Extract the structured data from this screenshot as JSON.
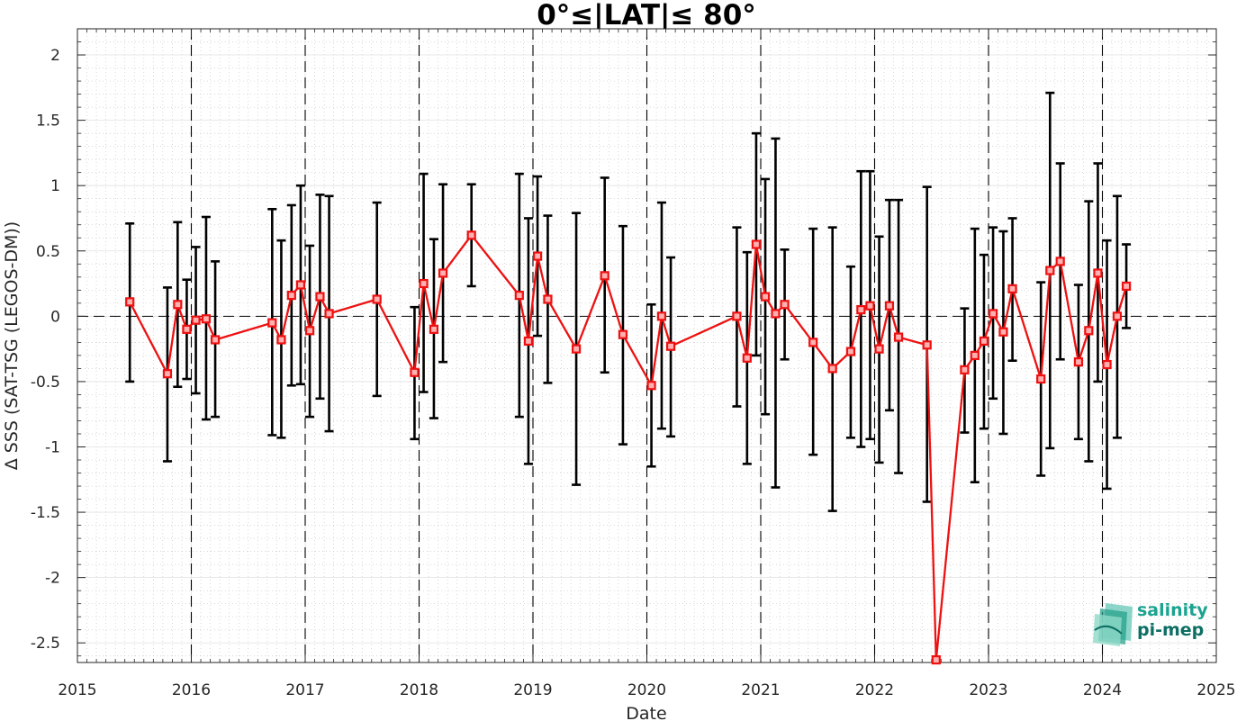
{
  "chart_data": {
    "type": "line",
    "title": "0°≤|LAT|≤ 80°",
    "xlabel": "Date",
    "ylabel": "Δ SSS (SAT-TSG (LEGOS-DM))",
    "xlim": [
      2015,
      2025
    ],
    "ylim": [
      -2.65,
      2.2
    ],
    "x_ticks": [
      "2015",
      "2016",
      "2017",
      "2018",
      "2019",
      "2020",
      "2021",
      "2022",
      "2023",
      "2024",
      "2025"
    ],
    "y_ticks": [
      "2",
      "1.5",
      "1",
      "0.5",
      "0",
      "-0.5",
      "-1",
      "-1.5",
      "-2",
      "-2.5"
    ],
    "year_dashed_lines": [
      2016,
      2017,
      2018,
      2019,
      2020,
      2021,
      2022,
      2023,
      2024
    ],
    "zero_line": 0,
    "grid": "minor dotted",
    "series": [
      {
        "color": "#ee1111",
        "marker": "square",
        "errorbar_color": "#000000",
        "points": [
          {
            "x": 2015.46,
            "y": 0.11,
            "lo": -0.5,
            "hi": 0.71
          },
          {
            "x": 2015.79,
            "y": -0.44,
            "lo": -1.11,
            "hi": 0.22
          },
          {
            "x": 2015.88,
            "y": 0.09,
            "lo": -0.54,
            "hi": 0.72
          },
          {
            "x": 2015.96,
            "y": -0.1,
            "lo": -0.48,
            "hi": 0.28
          },
          {
            "x": 2016.04,
            "y": -0.03,
            "lo": -0.59,
            "hi": 0.53
          },
          {
            "x": 2016.13,
            "y": -0.02,
            "lo": -0.79,
            "hi": 0.76
          },
          {
            "x": 2016.21,
            "y": -0.18,
            "lo": -0.77,
            "hi": 0.42
          },
          {
            "x": 2016.71,
            "y": -0.05,
            "lo": -0.91,
            "hi": 0.82
          },
          {
            "x": 2016.79,
            "y": -0.18,
            "lo": -0.93,
            "hi": 0.58
          },
          {
            "x": 2016.88,
            "y": 0.16,
            "lo": -0.53,
            "hi": 0.85
          },
          {
            "x": 2016.96,
            "y": 0.24,
            "lo": -0.52,
            "hi": 1.0
          },
          {
            "x": 2017.04,
            "y": -0.11,
            "lo": -0.77,
            "hi": 0.54
          },
          {
            "x": 2017.13,
            "y": 0.15,
            "lo": -0.63,
            "hi": 0.93
          },
          {
            "x": 2017.21,
            "y": 0.02,
            "lo": -0.88,
            "hi": 0.92
          },
          {
            "x": 2017.63,
            "y": 0.13,
            "lo": -0.61,
            "hi": 0.87
          },
          {
            "x": 2017.96,
            "y": -0.43,
            "lo": -0.94,
            "hi": 0.07
          },
          {
            "x": 2018.04,
            "y": 0.25,
            "lo": -0.58,
            "hi": 1.09
          },
          {
            "x": 2018.13,
            "y": -0.1,
            "lo": -0.78,
            "hi": 0.59
          },
          {
            "x": 2018.21,
            "y": 0.33,
            "lo": -0.35,
            "hi": 1.01
          },
          {
            "x": 2018.46,
            "y": 0.62,
            "lo": 0.23,
            "hi": 1.01
          },
          {
            "x": 2018.88,
            "y": 0.16,
            "lo": -0.77,
            "hi": 1.09
          },
          {
            "x": 2018.96,
            "y": -0.19,
            "lo": -1.13,
            "hi": 0.75
          },
          {
            "x": 2019.04,
            "y": 0.46,
            "lo": -0.15,
            "hi": 1.07
          },
          {
            "x": 2019.13,
            "y": 0.13,
            "lo": -0.51,
            "hi": 0.77
          },
          {
            "x": 2019.38,
            "y": -0.25,
            "lo": -1.29,
            "hi": 0.79
          },
          {
            "x": 2019.63,
            "y": 0.31,
            "lo": -0.43,
            "hi": 1.06
          },
          {
            "x": 2019.79,
            "y": -0.14,
            "lo": -0.98,
            "hi": 0.69
          },
          {
            "x": 2020.04,
            "y": -0.53,
            "lo": -1.15,
            "hi": 0.09
          },
          {
            "x": 2020.13,
            "y": 0.0,
            "lo": -0.86,
            "hi": 0.87
          },
          {
            "x": 2020.21,
            "y": -0.23,
            "lo": -0.92,
            "hi": 0.45
          },
          {
            "x": 2020.79,
            "y": 0.0,
            "lo": -0.69,
            "hi": 0.68
          },
          {
            "x": 2020.88,
            "y": -0.32,
            "lo": -1.13,
            "hi": 0.49
          },
          {
            "x": 2020.96,
            "y": 0.55,
            "lo": -0.3,
            "hi": 1.4
          },
          {
            "x": 2021.04,
            "y": 0.15,
            "lo": -0.75,
            "hi": 1.05
          },
          {
            "x": 2021.13,
            "y": 0.02,
            "lo": -1.31,
            "hi": 1.36
          },
          {
            "x": 2021.21,
            "y": 0.09,
            "lo": -0.33,
            "hi": 0.51
          },
          {
            "x": 2021.46,
            "y": -0.2,
            "lo": -1.06,
            "hi": 0.67
          },
          {
            "x": 2021.63,
            "y": -0.4,
            "lo": -1.49,
            "hi": 0.68
          },
          {
            "x": 2021.79,
            "y": -0.27,
            "lo": -0.93,
            "hi": 0.38
          },
          {
            "x": 2021.88,
            "y": 0.05,
            "lo": -1.0,
            "hi": 1.11
          },
          {
            "x": 2021.96,
            "y": 0.08,
            "lo": -0.94,
            "hi": 1.11
          },
          {
            "x": 2022.04,
            "y": -0.25,
            "lo": -1.12,
            "hi": 0.61
          },
          {
            "x": 2022.13,
            "y": 0.08,
            "lo": -0.72,
            "hi": 0.89
          },
          {
            "x": 2022.21,
            "y": -0.16,
            "lo": -1.2,
            "hi": 0.89
          },
          {
            "x": 2022.46,
            "y": -0.22,
            "lo": -1.42,
            "hi": 0.99
          },
          {
            "x": 2022.54,
            "y": -2.63,
            "lo": -2.63,
            "hi": -2.63
          },
          {
            "x": 2022.79,
            "y": -0.41,
            "lo": -0.89,
            "hi": 0.06
          },
          {
            "x": 2022.88,
            "y": -0.3,
            "lo": -1.27,
            "hi": 0.67
          },
          {
            "x": 2022.96,
            "y": -0.19,
            "lo": -0.86,
            "hi": 0.47
          },
          {
            "x": 2023.04,
            "y": 0.02,
            "lo": -0.63,
            "hi": 0.68
          },
          {
            "x": 2023.13,
            "y": -0.12,
            "lo": -0.9,
            "hi": 0.65
          },
          {
            "x": 2023.21,
            "y": 0.21,
            "lo": -0.34,
            "hi": 0.75
          },
          {
            "x": 2023.46,
            "y": -0.48,
            "lo": -1.22,
            "hi": 0.26
          },
          {
            "x": 2023.54,
            "y": 0.35,
            "lo": -1.01,
            "hi": 1.71
          },
          {
            "x": 2023.63,
            "y": 0.42,
            "lo": -0.33,
            "hi": 1.17
          },
          {
            "x": 2023.79,
            "y": -0.35,
            "lo": -0.94,
            "hi": 0.24
          },
          {
            "x": 2023.88,
            "y": -0.11,
            "lo": -1.11,
            "hi": 0.88
          },
          {
            "x": 2023.96,
            "y": 0.33,
            "lo": -0.5,
            "hi": 1.17
          },
          {
            "x": 2024.04,
            "y": -0.37,
            "lo": -1.32,
            "hi": 0.58
          },
          {
            "x": 2024.13,
            "y": 0.0,
            "lo": -0.93,
            "hi": 0.92
          },
          {
            "x": 2024.21,
            "y": 0.23,
            "lo": -0.09,
            "hi": 0.55
          }
        ]
      }
    ]
  },
  "logo": {
    "line1": "salinity",
    "line2": "pi-mep",
    "color1": "#1aa38f",
    "color2": "#0d6f63"
  }
}
